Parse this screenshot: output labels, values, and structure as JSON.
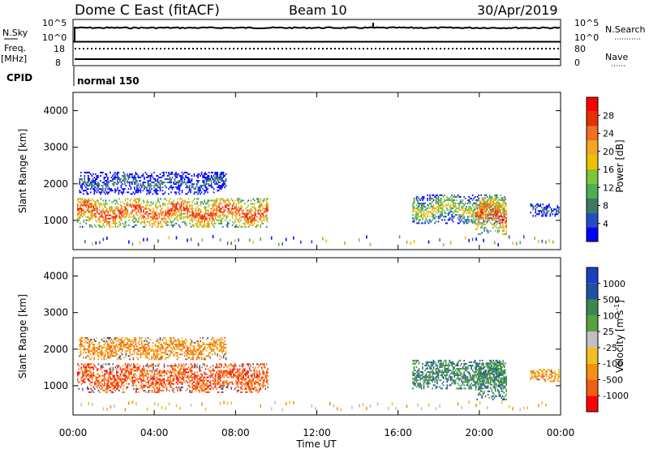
{
  "header": {
    "station": "Dome C East (fitACF)",
    "beam": "Beam 10",
    "date": "30/Apr/2019"
  },
  "noise_panel": {
    "left_label": "N.Sky",
    "right_label": "N.Search",
    "left_ticks": [
      "10^5",
      "10^0"
    ],
    "right_ticks": [
      "10^5",
      "10^0"
    ]
  },
  "freq_panel": {
    "left_label_1": "Freq.",
    "left_label_2": "[MHz]",
    "right_label": "Nave",
    "left_ticks": [
      "18",
      "8"
    ],
    "right_ticks": [
      "80",
      "0"
    ]
  },
  "cpid": {
    "label": "CPID",
    "mode": "normal 150"
  },
  "colors": {
    "power": [
      "#0000ff",
      "#2050c0",
      "#3c7a60",
      "#4caf50",
      "#80c43c",
      "#f0c000",
      "#f5a623",
      "#f07020",
      "#e63000",
      "#ff0000"
    ],
    "velocity": [
      "#ff0000",
      "#f06010",
      "#f59010",
      "#f0c020",
      "#c0c0c0",
      "#5aa040",
      "#3a8a50",
      "#2050a0",
      "#1a40c0"
    ]
  },
  "chart_data": [
    {
      "type": "heatmap",
      "name": "power",
      "ylabel": "Slant Range [km]",
      "xlabel": "Time UT",
      "xticks": [
        "00:00",
        "04:00",
        "08:00",
        "12:00",
        "16:00",
        "20:00",
        "00:00"
      ],
      "yticks": [
        "1000",
        "2000",
        "3000",
        "4000"
      ],
      "ylim": [
        200,
        4500
      ],
      "colorbar_label": "Power [dB]",
      "colorbar_ticks": [
        "4",
        "8",
        "12",
        "16",
        "20",
        "24",
        "28"
      ],
      "colorbar_range": [
        0,
        30
      ],
      "echo_regions": [
        {
          "t_start": 0.2,
          "t_end": 9.6,
          "r_min": 800,
          "r_max": 1600,
          "level": "high"
        },
        {
          "t_start": 0.3,
          "t_end": 7.5,
          "r_min": 1700,
          "r_max": 2300,
          "level": "low"
        },
        {
          "t_start": 16.7,
          "t_end": 21.2,
          "r_min": 900,
          "r_max": 1700,
          "level": "mid"
        },
        {
          "t_start": 19.8,
          "t_end": 21.3,
          "r_min": 600,
          "r_max": 1600,
          "level": "high"
        },
        {
          "t_start": 22.5,
          "t_end": 23.9,
          "r_min": 1100,
          "r_max": 1450,
          "level": "low"
        }
      ]
    },
    {
      "type": "heatmap",
      "name": "velocity",
      "ylabel": "Slant Range [km]",
      "xlabel": "Time UT",
      "xticks": [
        "00:00",
        "04:00",
        "08:00",
        "12:00",
        "16:00",
        "20:00",
        "00:00"
      ],
      "yticks": [
        "1000",
        "2000",
        "3000",
        "4000"
      ],
      "ylim": [
        200,
        4500
      ],
      "colorbar_label": "Velocity [m s^-1]",
      "colorbar_ticks": [
        "1000",
        "500",
        "100",
        "25",
        "-25",
        "-100",
        "-500",
        "-1000"
      ],
      "echo_regions": [
        {
          "t_start": 0.2,
          "t_end": 9.6,
          "r_min": 800,
          "r_max": 1600,
          "velocity": -300
        },
        {
          "t_start": 0.3,
          "t_end": 7.5,
          "r_min": 1700,
          "r_max": 2300,
          "velocity": -100
        },
        {
          "t_start": 16.7,
          "t_end": 21.2,
          "r_min": 900,
          "r_max": 1700,
          "velocity": 150
        },
        {
          "t_start": 19.8,
          "t_end": 21.3,
          "r_min": 600,
          "r_max": 1600,
          "velocity": 200
        },
        {
          "t_start": 22.5,
          "t_end": 23.9,
          "r_min": 1100,
          "r_max": 1450,
          "velocity": -150
        }
      ]
    }
  ]
}
